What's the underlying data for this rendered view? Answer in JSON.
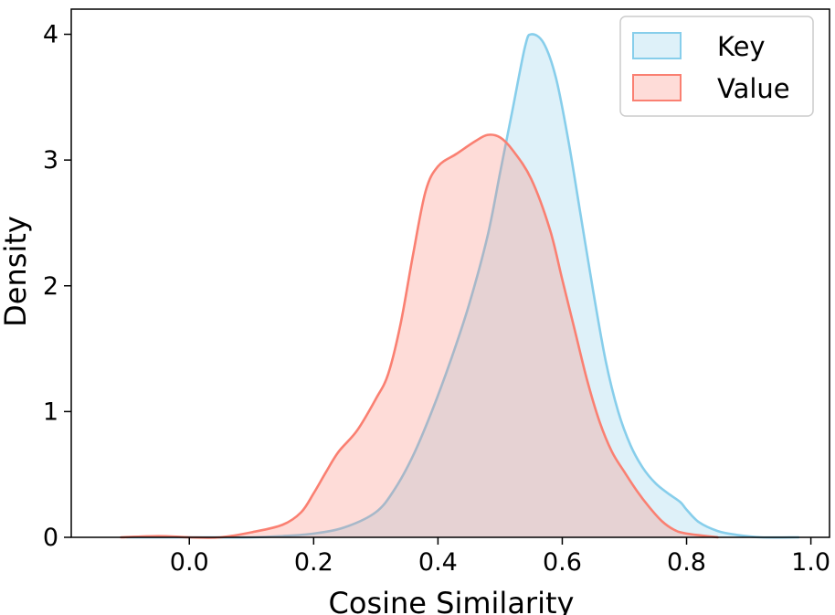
{
  "chart_data": {
    "type": "area",
    "title": "",
    "xlabel": "Cosine Similarity",
    "ylabel": "Density",
    "xlim": [
      -0.19,
      1.03
    ],
    "ylim": [
      0,
      4.2
    ],
    "xticks": [
      0.0,
      0.2,
      0.4,
      0.6,
      0.8,
      1.0
    ],
    "xtick_labels": [
      "0.0",
      "0.2",
      "0.4",
      "0.6",
      "0.8",
      "1.0"
    ],
    "yticks": [
      0,
      1,
      2,
      3,
      4
    ],
    "ytick_labels": [
      "0",
      "1",
      "2",
      "3",
      "4"
    ],
    "grid": false,
    "legend_position": "top-right",
    "series": [
      {
        "name": "Key",
        "color": "#87CEEB",
        "points": [
          [
            -0.1,
            0.0
          ],
          [
            0.0,
            0.0
          ],
          [
            0.1,
            0.0
          ],
          [
            0.15,
            0.01
          ],
          [
            0.2,
            0.03
          ],
          [
            0.25,
            0.08
          ],
          [
            0.3,
            0.2
          ],
          [
            0.33,
            0.38
          ],
          [
            0.36,
            0.65
          ],
          [
            0.39,
            1.0
          ],
          [
            0.42,
            1.4
          ],
          [
            0.45,
            1.85
          ],
          [
            0.48,
            2.4
          ],
          [
            0.5,
            2.9
          ],
          [
            0.52,
            3.4
          ],
          [
            0.54,
            3.9
          ],
          [
            0.55,
            4.0
          ],
          [
            0.57,
            3.93
          ],
          [
            0.59,
            3.65
          ],
          [
            0.61,
            3.15
          ],
          [
            0.63,
            2.55
          ],
          [
            0.65,
            1.95
          ],
          [
            0.67,
            1.4
          ],
          [
            0.69,
            1.0
          ],
          [
            0.71,
            0.73
          ],
          [
            0.73,
            0.55
          ],
          [
            0.75,
            0.43
          ],
          [
            0.77,
            0.35
          ],
          [
            0.79,
            0.28
          ],
          [
            0.8,
            0.22
          ],
          [
            0.82,
            0.12
          ],
          [
            0.85,
            0.05
          ],
          [
            0.88,
            0.02
          ],
          [
            0.92,
            0.0
          ],
          [
            0.98,
            0.0
          ]
        ]
      },
      {
        "name": "Value",
        "color": "#FA8072",
        "points": [
          [
            -0.11,
            0.0
          ],
          [
            -0.05,
            0.01
          ],
          [
            0.0,
            0.0
          ],
          [
            0.05,
            0.0
          ],
          [
            0.1,
            0.04
          ],
          [
            0.15,
            0.1
          ],
          [
            0.18,
            0.2
          ],
          [
            0.2,
            0.35
          ],
          [
            0.22,
            0.52
          ],
          [
            0.24,
            0.68
          ],
          [
            0.27,
            0.85
          ],
          [
            0.3,
            1.1
          ],
          [
            0.32,
            1.3
          ],
          [
            0.34,
            1.7
          ],
          [
            0.36,
            2.25
          ],
          [
            0.38,
            2.75
          ],
          [
            0.4,
            2.95
          ],
          [
            0.43,
            3.05
          ],
          [
            0.46,
            3.15
          ],
          [
            0.48,
            3.2
          ],
          [
            0.5,
            3.18
          ],
          [
            0.52,
            3.08
          ],
          [
            0.55,
            2.85
          ],
          [
            0.58,
            2.45
          ],
          [
            0.6,
            2.05
          ],
          [
            0.62,
            1.65
          ],
          [
            0.64,
            1.25
          ],
          [
            0.66,
            0.92
          ],
          [
            0.68,
            0.68
          ],
          [
            0.7,
            0.52
          ],
          [
            0.72,
            0.37
          ],
          [
            0.74,
            0.24
          ],
          [
            0.76,
            0.13
          ],
          [
            0.78,
            0.06
          ],
          [
            0.8,
            0.03
          ],
          [
            0.85,
            0.0
          ]
        ]
      }
    ]
  }
}
